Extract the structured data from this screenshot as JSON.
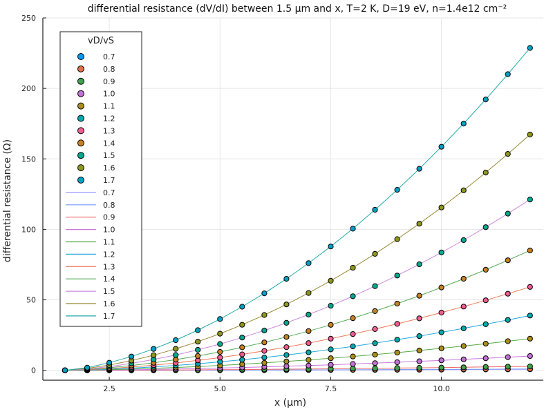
{
  "chart_data": {
    "type": "line",
    "title": "differential resistance (dV/dI) between 1.5 μm and x, T=2 K, D=19 eV, n=1.4e12 cm⁻²",
    "xlabel": "x (μm)",
    "ylabel": "differential resistance (Ω)",
    "xlim": [
      1.0,
      12.3
    ],
    "ylim": [
      -7,
      250
    ],
    "xticks": [
      2.5,
      5.0,
      7.5,
      10.0
    ],
    "xtick_labels": [
      "2.5",
      "5.0",
      "7.5",
      "10.0"
    ],
    "yticks": [
      0,
      50,
      100,
      150,
      200,
      250
    ],
    "ytick_labels": [
      "0",
      "50",
      "100",
      "150",
      "200",
      "250"
    ],
    "grid": true,
    "legend_title": "vD/vS",
    "legend_position": "top-left",
    "x": [
      1.5,
      2.0,
      2.5,
      3.0,
      3.5,
      4.0,
      4.5,
      5.0,
      5.5,
      6.0,
      6.5,
      7.0,
      7.5,
      8.0,
      8.5,
      9.0,
      9.5,
      10.0,
      10.5,
      11.0,
      11.5,
      12.0
    ],
    "marker_colors": [
      "#009af9",
      "#e26f46",
      "#3da44d",
      "#c271d2",
      "#ac8e18",
      "#00a9ad",
      "#ed5e93",
      "#c68125",
      "#00a98d",
      "#8e971d",
      "#00a0c3"
    ],
    "line_colors": [
      "#9999ff",
      "#7799ff",
      "#ee6666",
      "#cc77dd",
      "#55aa44",
      "#22aadd",
      "#ee7755",
      "#55aa55",
      "#cc88dd",
      "#998833",
      "#22aaaa"
    ],
    "series": [
      {
        "name": "0.7",
        "values": [
          0.0,
          0.005,
          0.014,
          0.027,
          0.043,
          0.062,
          0.085,
          0.11,
          0.14,
          0.17,
          0.2,
          0.24,
          0.28,
          0.32,
          0.36,
          0.41,
          0.46,
          0.51,
          0.56,
          0.62,
          0.67,
          0.73
        ]
      },
      {
        "name": "0.8",
        "values": [
          0.0,
          0.007,
          0.019,
          0.035,
          0.056,
          0.081,
          0.11,
          0.14,
          0.18,
          0.22,
          0.26,
          0.31,
          0.36,
          0.41,
          0.47,
          0.53,
          0.59,
          0.66,
          0.73,
          0.8,
          0.87,
          0.95
        ]
      },
      {
        "name": "0.9",
        "values": [
          0.0,
          0.022,
          0.062,
          0.115,
          0.18,
          0.26,
          0.35,
          0.45,
          0.56,
          0.68,
          0.81,
          0.95,
          1.1,
          1.26,
          1.43,
          1.6,
          1.78,
          1.97,
          2.17,
          2.38,
          2.59,
          2.81
        ]
      },
      {
        "name": "1.0",
        "values": [
          0.0,
          0.08,
          0.22,
          0.41,
          0.65,
          0.93,
          1.25,
          1.6,
          2.0,
          2.43,
          2.9,
          3.4,
          3.93,
          4.5,
          5.1,
          5.73,
          6.39,
          7.08,
          7.8,
          8.55,
          9.33,
          10.13
        ]
      },
      {
        "name": "1.1",
        "values": [
          0.0,
          0.17,
          0.48,
          0.89,
          1.4,
          2.0,
          2.7,
          3.47,
          4.33,
          5.27,
          6.3,
          7.41,
          8.59,
          9.85,
          11.18,
          12.58,
          14.05,
          15.6,
          17.21,
          18.89,
          20.64,
          22.46
        ]
      },
      {
        "name": "1.2",
        "values": [
          0.0,
          0.3,
          0.84,
          1.55,
          2.43,
          3.47,
          4.66,
          6.0,
          7.49,
          9.12,
          10.89,
          12.79,
          14.83,
          17.0,
          19.3,
          21.73,
          24.28,
          26.96,
          29.76,
          32.68,
          35.73,
          38.89
        ]
      },
      {
        "name": "1.3",
        "values": [
          0.0,
          0.45,
          1.28,
          2.36,
          3.69,
          5.25,
          7.05,
          9.08,
          11.32,
          13.79,
          16.47,
          19.36,
          22.46,
          25.76,
          29.26,
          32.96,
          36.86,
          40.95,
          45.23,
          49.7,
          54.36,
          59.2
        ]
      },
      {
        "name": "1.4",
        "values": [
          0.0,
          0.66,
          1.86,
          3.42,
          5.33,
          7.59,
          10.17,
          13.08,
          16.3,
          19.84,
          23.68,
          27.83,
          32.27,
          37.0,
          42.02,
          47.33,
          52.92,
          58.8,
          64.95,
          71.38,
          78.08,
          85.05
        ]
      },
      {
        "name": "1.5",
        "values": [
          0.0,
          0.96,
          2.69,
          4.93,
          7.67,
          10.88,
          14.55,
          18.67,
          23.24,
          28.24,
          33.68,
          39.55,
          45.84,
          52.56,
          59.7,
          67.25,
          75.22,
          83.6,
          92.39,
          101.59,
          111.19,
          121.19
        ]
      },
      {
        "name": "1.6",
        "values": [
          0.0,
          1.35,
          3.77,
          6.91,
          10.73,
          15.2,
          20.3,
          26.01,
          32.33,
          39.25,
          46.76,
          54.86,
          63.54,
          72.8,
          82.64,
          93.04,
          104.01,
          115.55,
          127.65,
          140.3,
          153.52,
          167.28
        ]
      },
      {
        "name": "1.7",
        "values": [
          0.0,
          1.93,
          5.37,
          9.81,
          15.17,
          21.41,
          28.49,
          36.39,
          45.11,
          54.62,
          64.92,
          76.01,
          87.87,
          100.5,
          113.9,
          128.06,
          142.97,
          158.63,
          175.04,
          192.2,
          210.09,
          228.72
        ]
      }
    ]
  }
}
